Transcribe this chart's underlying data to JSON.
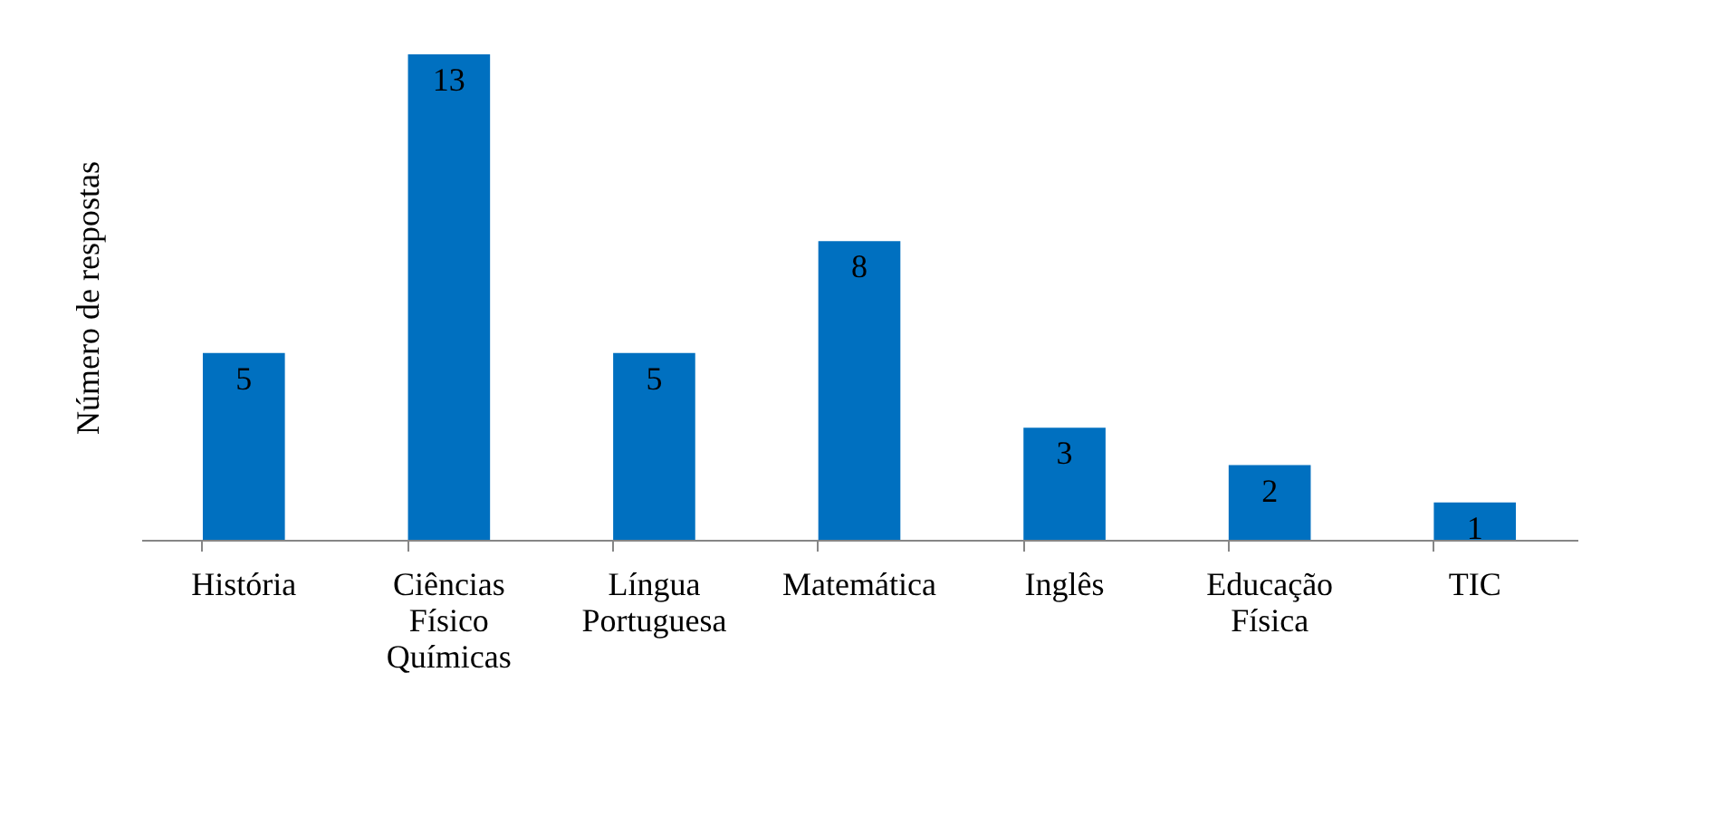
{
  "chart_data": {
    "type": "bar",
    "ylabel": "Número de respostas",
    "categories": [
      "História",
      "Ciências Físico Químicas",
      "Língua Portuguesa",
      "Matemática",
      "Inglês",
      "Educação Física",
      "TIC"
    ],
    "values": [
      5,
      13,
      5,
      8,
      3,
      2,
      1
    ],
    "color": "#0070c0",
    "data_labels": true
  }
}
